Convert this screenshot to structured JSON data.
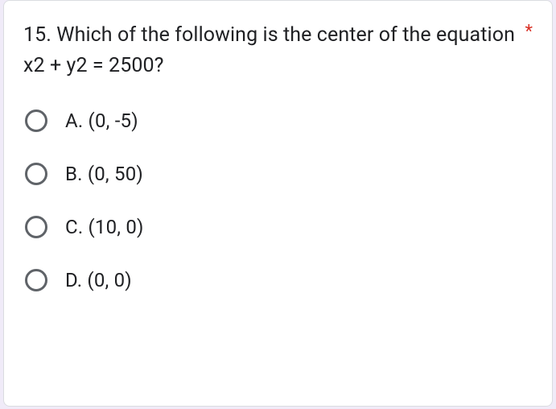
{
  "question": {
    "text": "15. Which of the following is the center of the equation x2 + y2 = 2500?",
    "required_marker": "*"
  },
  "options": [
    {
      "label": "A. (0, -5)"
    },
    {
      "label": "B. (0, 50)"
    },
    {
      "label": "C. (10, 0)"
    },
    {
      "label": "D. (0, 0)"
    }
  ],
  "colors": {
    "background": "#f0ebf8",
    "card_bg": "#ffffff",
    "card_border": "#dadce0",
    "text": "#202124",
    "required": "#d93025",
    "radio_border": "#5f6368"
  }
}
